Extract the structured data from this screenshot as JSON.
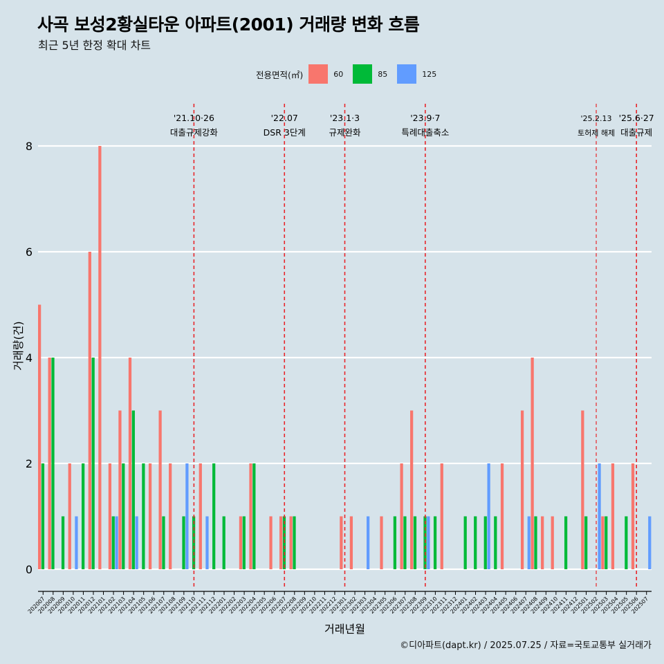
{
  "title": "사곡 보성2황실타운 아파트(2001) 거래량 변화 흐름",
  "subtitle": "최근 5년 한정 확대 차트",
  "caption": "©디아파트(dapt.kr) / 2025.07.25 / 자료=국토교통부 실거래가",
  "legend": {
    "title": "전용면적(㎡)",
    "items": [
      {
        "label": "60",
        "color": "#f8766d"
      },
      {
        "label": "85",
        "color": "#00ba38"
      },
      {
        "label": "125",
        "color": "#619cff"
      }
    ]
  },
  "chart_data": {
    "type": "bar",
    "xlabel": "거래년월",
    "ylabel": "거래량(건)",
    "ylim": [
      0,
      8
    ],
    "yticks": [
      0,
      2,
      4,
      6,
      8
    ],
    "grid": true,
    "legend_position": "top",
    "categories": [
      "202007",
      "202008",
      "202009",
      "202010",
      "202011",
      "202012",
      "202101",
      "202102",
      "202103",
      "202104",
      "202105",
      "202106",
      "202107",
      "202108",
      "202109",
      "202110",
      "202111",
      "202112",
      "202201",
      "202202",
      "202203",
      "202204",
      "202205",
      "202206",
      "202207",
      "202208",
      "202209",
      "202210",
      "202211",
      "202212",
      "202301",
      "202302",
      "202303",
      "202304",
      "202305",
      "202306",
      "202307",
      "202308",
      "202309",
      "202310",
      "202311",
      "202312",
      "202401",
      "202402",
      "202403",
      "202404",
      "202405",
      "202406",
      "202407",
      "202408",
      "202409",
      "202410",
      "202411",
      "202412",
      "202501",
      "202502",
      "202503",
      "202504",
      "202505",
      "202506",
      "202507"
    ],
    "series": [
      {
        "name": "60",
        "color": "#f8766d",
        "values": [
          5,
          4,
          0,
          2,
          0,
          6,
          8,
          2,
          3,
          4,
          0,
          2,
          3,
          2,
          0,
          0,
          2,
          0,
          0,
          0,
          1,
          2,
          0,
          1,
          1,
          1,
          0,
          0,
          0,
          0,
          1,
          1,
          0,
          0,
          1,
          0,
          2,
          3,
          0,
          0,
          2,
          0,
          0,
          0,
          0,
          0,
          2,
          0,
          3,
          4,
          1,
          1,
          0,
          0,
          3,
          0,
          1,
          2,
          0,
          2,
          0
        ]
      },
      {
        "name": "85",
        "color": "#00ba38",
        "values": [
          2,
          4,
          1,
          0,
          2,
          4,
          0,
          1,
          2,
          3,
          2,
          0,
          1,
          0,
          1,
          1,
          0,
          2,
          1,
          0,
          1,
          2,
          0,
          0,
          1,
          1,
          0,
          0,
          0,
          0,
          0,
          0,
          0,
          0,
          0,
          1,
          1,
          1,
          1,
          1,
          0,
          0,
          1,
          1,
          1,
          1,
          0,
          0,
          0,
          1,
          0,
          0,
          1,
          0,
          1,
          0,
          1,
          0,
          1,
          0,
          0
        ]
      },
      {
        "name": "125",
        "color": "#619cff",
        "values": [
          0,
          0,
          0,
          1,
          0,
          0,
          0,
          1,
          0,
          1,
          0,
          0,
          0,
          0,
          2,
          0,
          1,
          0,
          0,
          0,
          0,
          0,
          0,
          0,
          0,
          0,
          0,
          0,
          0,
          0,
          0,
          0,
          1,
          0,
          0,
          0,
          0,
          0,
          1,
          0,
          0,
          0,
          0,
          0,
          2,
          0,
          0,
          0,
          1,
          0,
          0,
          0,
          0,
          0,
          0,
          2,
          0,
          0,
          0,
          0,
          1
        ]
      }
    ],
    "annotations": [
      {
        "at": "202110",
        "date": "'21.10·26",
        "label": "대출규제강화"
      },
      {
        "at": "202207",
        "date": "'22.07",
        "label": "DSR 3단계"
      },
      {
        "at": "202301",
        "date": "'23.1·3",
        "label": "규제완화"
      },
      {
        "at": "202309",
        "date": "'23.9·7",
        "label": "특례대출축소"
      },
      {
        "at": "202502",
        "date": "'25.2.13",
        "label": "토허제 해제",
        "small": true
      },
      {
        "at": "202506",
        "date": "'25.6·27",
        "label": "대출규제"
      }
    ]
  }
}
